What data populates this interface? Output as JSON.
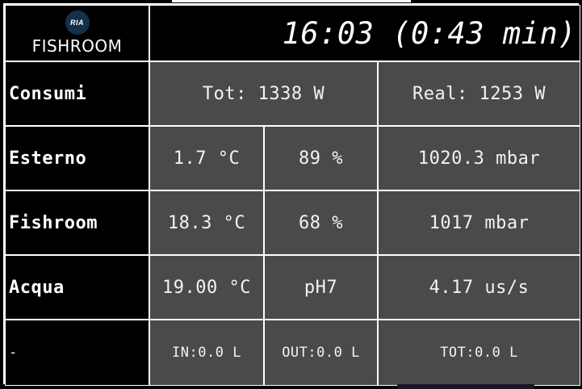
{
  "header": {
    "logo_text": "RIA",
    "title": "FISHROOM",
    "clock": "16:03 (0:43 min)"
  },
  "rows": [
    {
      "label": "Consumi",
      "cells": [
        "Tot: 1338 W",
        "Real: 1253 W"
      ]
    },
    {
      "label": "Esterno",
      "cells": [
        "1.7 °C",
        "89 %",
        "1020.3 mbar"
      ]
    },
    {
      "label": "Fishroom",
      "cells": [
        "18.3 °C",
        "68 %",
        "1017 mbar"
      ]
    },
    {
      "label": "Acqua",
      "cells": [
        "19.00 °C",
        "pH7",
        "4.17 us/s"
      ]
    },
    {
      "label": "-",
      "cells": [
        "IN:0.0 L",
        "OUT:0.0 L",
        "TOT:0.0 L"
      ]
    }
  ],
  "colors": {
    "cell_background": "#4a4a4a",
    "label_background": "#000000",
    "grid_lines": "#ffffff",
    "text": "#f2f2f2"
  }
}
